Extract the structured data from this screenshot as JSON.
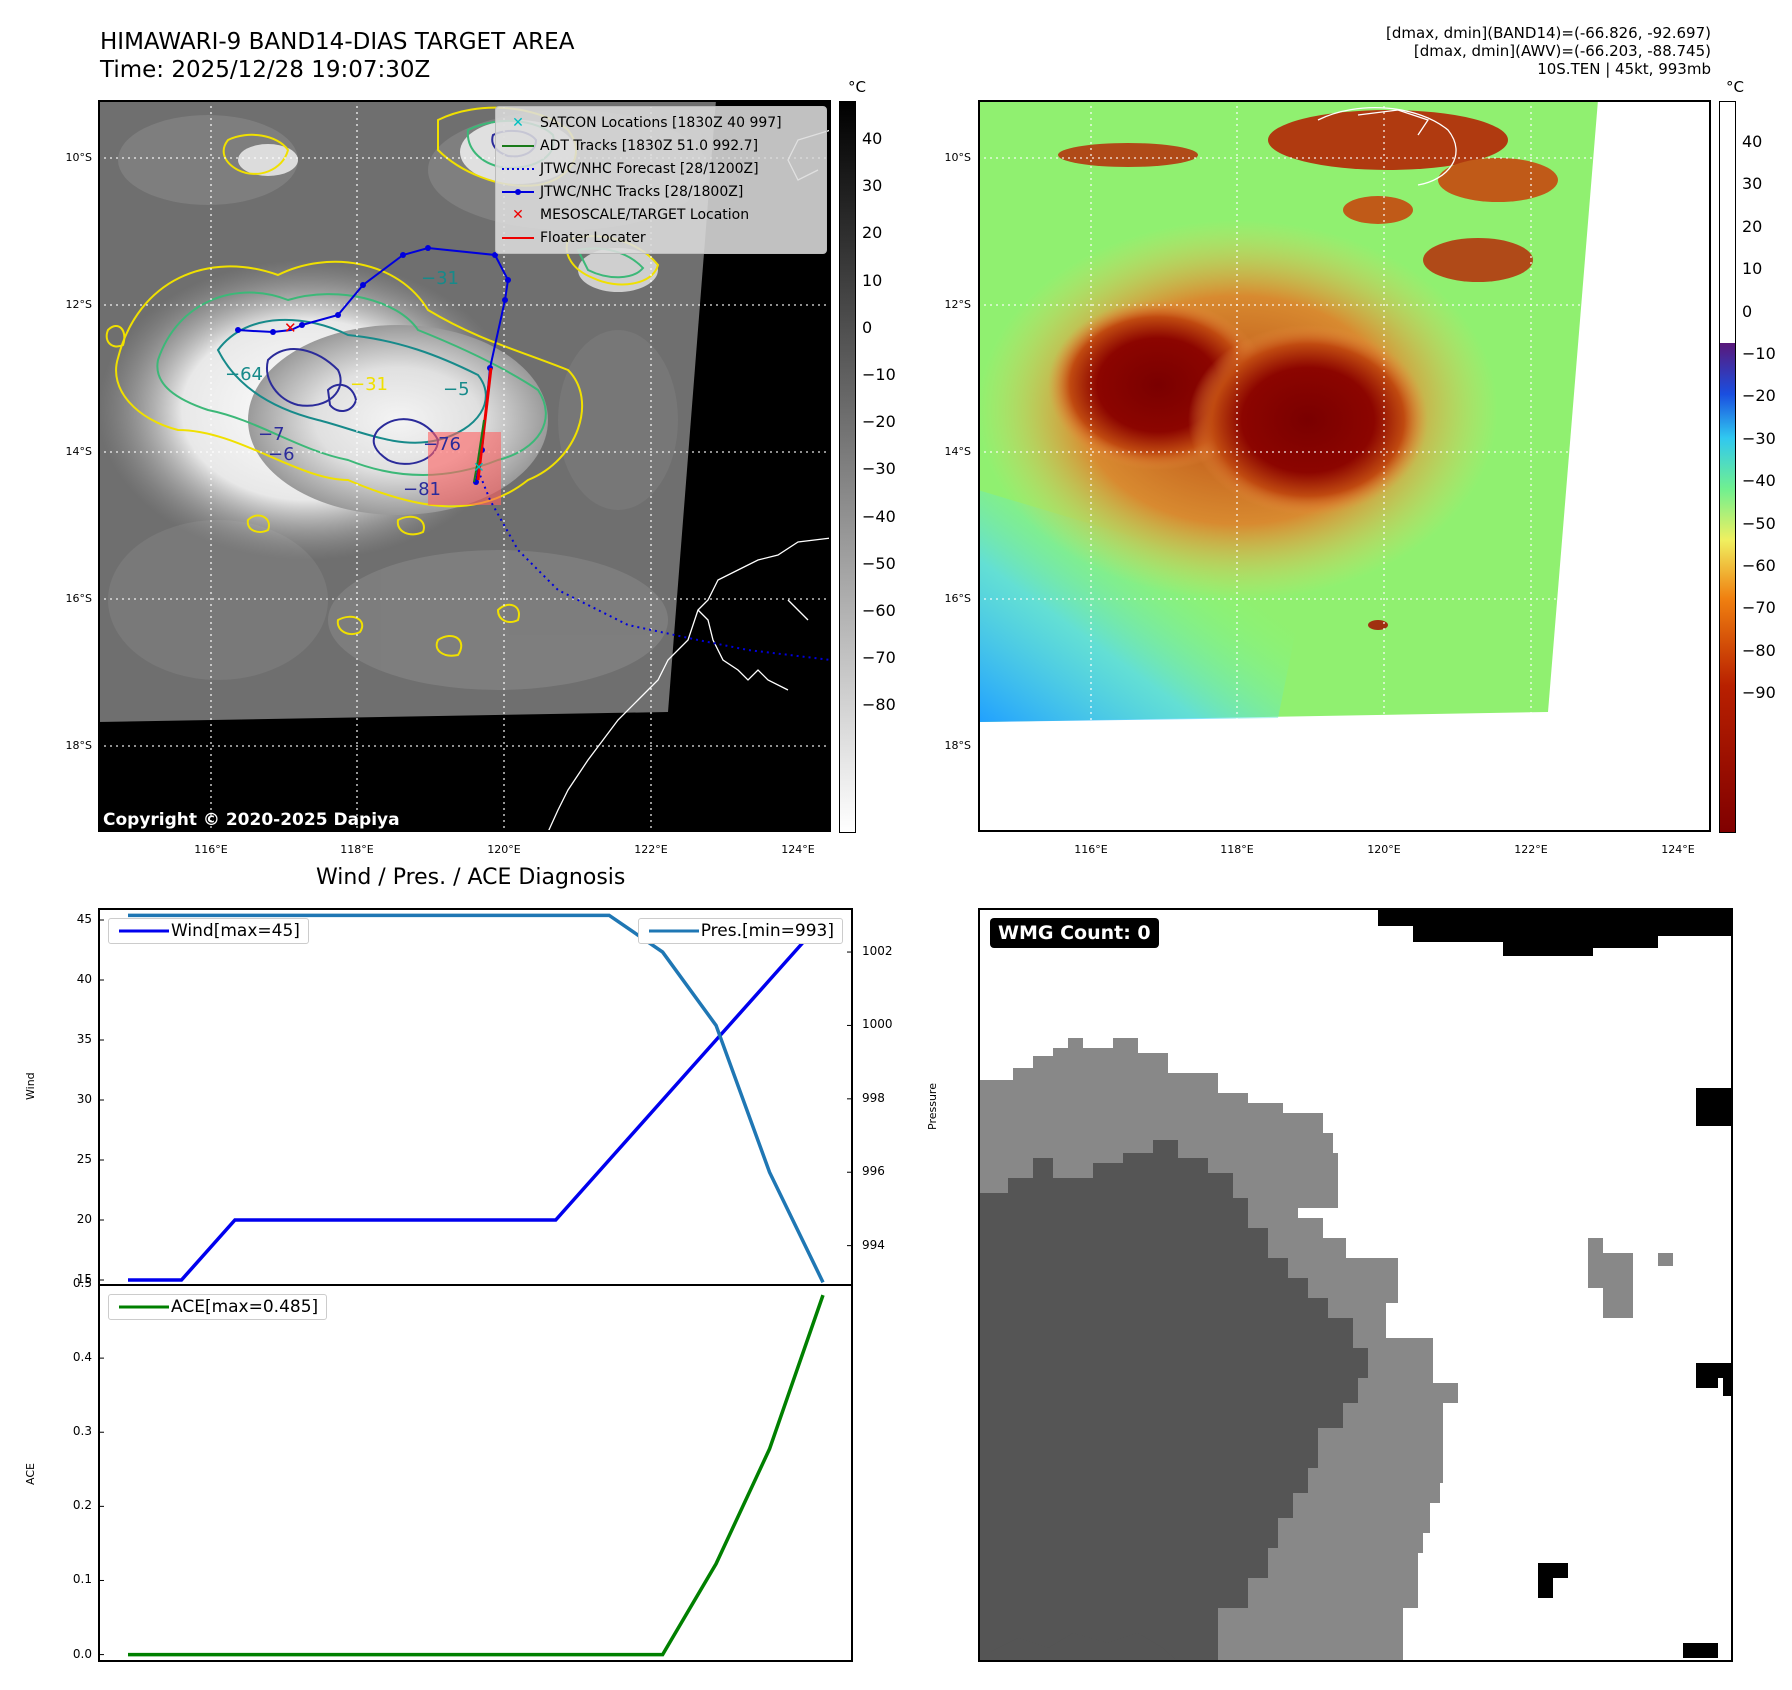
{
  "title": {
    "line1": "HIMAWARI-9 BAND14-DIAS TARGET AREA",
    "line2": "Time: 2025/12/28 19:07:30Z"
  },
  "info": {
    "line1": "[dmax, dmin](BAND14)=(-66.826, -92.697)",
    "line2": "[dmax, dmin](AWV)=(-66.203, -88.745)",
    "line3": "10S.TEN | 45kt, 993mb"
  },
  "colors": {
    "wind": "#0000ee",
    "pressure": "#1f77b4",
    "ace": "#008000",
    "satcon": "#00c0c0",
    "adt": "#1a7a1a",
    "jtwc": "#0000dd",
    "target": "#ee0000",
    "floater": "#ee0000"
  },
  "map_axes": {
    "lat_labels": [
      "10°S",
      "12°S",
      "14°S",
      "16°S",
      "18°S"
    ],
    "lon_labels": [
      "116°E",
      "118°E",
      "120°E",
      "122°E",
      "124°E"
    ]
  },
  "ir_colorbar": {
    "unit": "°C",
    "ticks": [
      "40",
      "30",
      "20",
      "10",
      "0",
      "−10",
      "−20",
      "−30",
      "−40",
      "−50",
      "−60",
      "−70",
      "−80"
    ]
  },
  "awv_colorbar": {
    "unit": "°C",
    "ticks": [
      "40",
      "30",
      "20",
      "10",
      "0",
      "−10",
      "−20",
      "−30",
      "−40",
      "−50",
      "−60",
      "−70",
      "−80",
      "−90"
    ]
  },
  "legend": {
    "satcon": "SATCON Locations [1830Z 40 997]",
    "adt": "ADT Tracks [1830Z 51.0 992.7]",
    "forecast": "JTWC/NHC Forecast [28/1200Z]",
    "tracks": "JTWC/NHC Tracks [28/1800Z]",
    "target": "MESOSCALE/TARGET Location",
    "floater": "Floater Locater"
  },
  "contour_labels": [
    "−31",
    "−31",
    "−64",
    "−5",
    "−76",
    "−81",
    "−6",
    "−7"
  ],
  "copyright": "Copyright © 2020-2025 Dapiya",
  "wmg": {
    "label": "WMG Count: 0"
  },
  "chart_data": [
    {
      "type": "line",
      "title": "Wind / Pres. / ACE Diagnosis",
      "ylabel": "Wind",
      "y2label": "Pressure",
      "ylim": [
        14.5,
        46
      ],
      "y2lim": [
        992.9,
        1003.2
      ],
      "y_ticks": [
        15,
        20,
        25,
        30,
        35,
        40,
        45
      ],
      "y2_ticks": [
        994,
        996,
        998,
        1000,
        1002
      ],
      "series": [
        {
          "name": "Wind[max=45]",
          "axis": "left",
          "values": [
            15,
            15,
            20,
            20,
            20,
            20,
            20,
            20,
            20,
            25,
            30,
            35,
            40,
            45
          ]
        },
        {
          "name": "Pres.[min=993]",
          "axis": "right",
          "values": [
            1003,
            1003,
            1003,
            1003,
            1003,
            1003,
            1003,
            1003,
            1003,
            1003,
            1002,
            1000,
            996,
            993
          ]
        }
      ]
    },
    {
      "type": "line",
      "ylabel": "ACE",
      "ylim": [
        -0.01,
        0.5
      ],
      "y_ticks": [
        0.0,
        0.1,
        0.2,
        0.3,
        0.4,
        0.5
      ],
      "y_tick_labels": [
        "0.0",
        "0.1",
        "0.2",
        "0.3",
        "0.4",
        "0.5"
      ],
      "series": [
        {
          "name": "ACE[max=0.485]",
          "values": [
            0,
            0,
            0,
            0,
            0,
            0,
            0,
            0,
            0,
            0,
            0,
            0.1225,
            0.2775,
            0.485
          ]
        }
      ]
    }
  ]
}
